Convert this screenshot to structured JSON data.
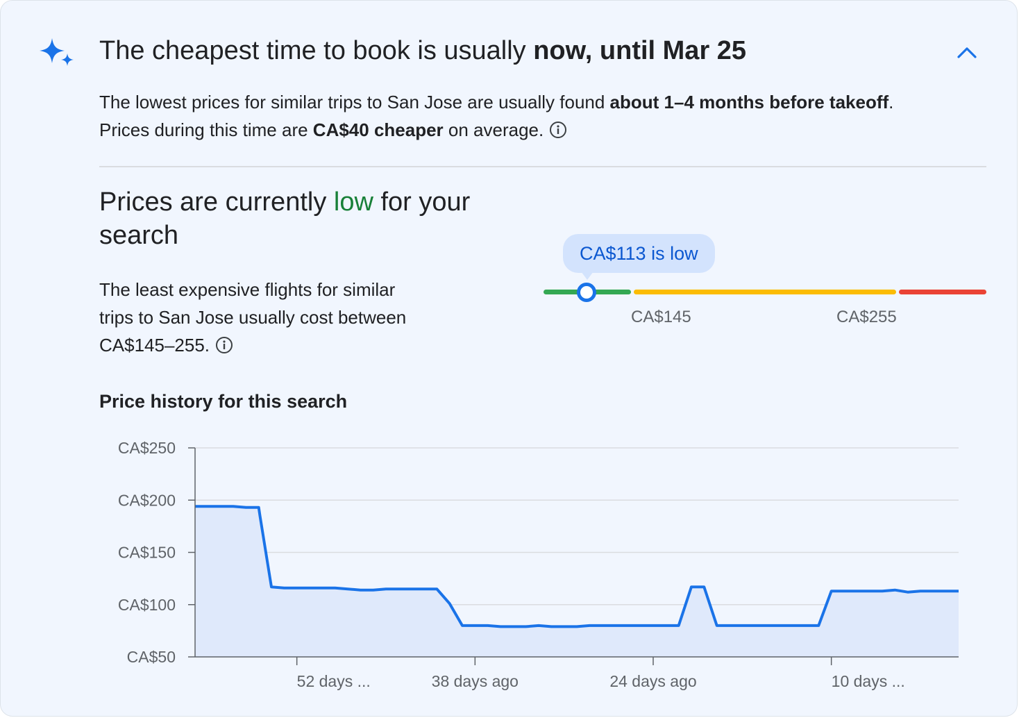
{
  "header": {
    "title_prefix": "The cheapest time to book is usually ",
    "title_emphasis": "now, until Mar 25",
    "collapse_icon": "chevron-up-icon",
    "sparkle_icon": "sparkle-icon"
  },
  "summary": {
    "part1": "The lowest prices for similar trips to San Jose are usually found ",
    "bold1": "about 1–4 months before takeoff",
    "part2": ". Prices during this time are ",
    "bold2": "CA$40 cheaper",
    "part3": " on average."
  },
  "status": {
    "title_prefix": "Prices are currently ",
    "title_level": "low",
    "title_suffix": " for your search",
    "description": "The least expensive flights for similar trips to San Jose usually cost between CA$145–255."
  },
  "price_meter": {
    "bubble": "CA$113 is low",
    "current_price": 113,
    "low_threshold_label": "CA$145",
    "high_threshold_label": "CA$255",
    "colors": {
      "low": "#34a853",
      "typical": "#fbbc04",
      "high": "#ea4335"
    }
  },
  "history": {
    "title": "Price history for this search"
  },
  "chart_data": {
    "type": "area",
    "title": "",
    "xlabel": "",
    "ylabel": "",
    "ylim": [
      50,
      250
    ],
    "yticks": [
      50,
      100,
      150,
      200,
      250
    ],
    "ytick_labels": [
      "CA$50",
      "CA$100",
      "CA$150",
      "CA$200",
      "CA$250"
    ],
    "xlim": [
      60,
      0
    ],
    "xticks": [
      52,
      38,
      24,
      10
    ],
    "xtick_labels": [
      "52 days ...",
      "38 days ago",
      "24 days ago",
      "10 days ..."
    ],
    "grid": true,
    "legend": "none",
    "line_color": "#1a73e8",
    "fill_color": "#dfe9fb",
    "series": [
      {
        "x": [
          60,
          57,
          56,
          55,
          54.9,
          54,
          53,
          51,
          49,
          48,
          47,
          46,
          45,
          43,
          41,
          40,
          39,
          38,
          37,
          36,
          35,
          34,
          33,
          32,
          31,
          30,
          29,
          27,
          26,
          25,
          24,
          23,
          22,
          21,
          20,
          19,
          18.8,
          18,
          17,
          16,
          15,
          14,
          13,
          12,
          11,
          10,
          9,
          8,
          7,
          6,
          5,
          4,
          3,
          2,
          1,
          0
        ],
        "values": [
          194,
          194,
          193,
          193,
          185,
          117,
          116,
          116,
          116,
          115,
          114,
          114,
          115,
          115,
          115,
          101,
          80,
          80,
          80,
          79,
          79,
          79,
          80,
          79,
          79,
          79,
          80,
          80,
          80,
          80,
          80,
          80,
          80,
          117,
          117,
          80,
          80,
          80,
          80,
          80,
          80,
          80,
          80,
          80,
          80,
          113,
          113,
          113,
          113,
          113,
          114,
          112,
          113,
          113,
          113,
          113
        ]
      }
    ]
  }
}
